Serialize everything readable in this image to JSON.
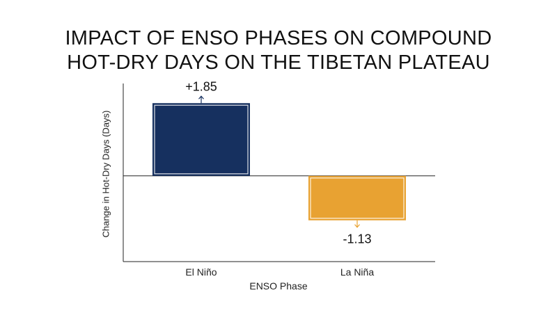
{
  "chart_data": {
    "type": "bar",
    "title_lines": [
      "IMPACT OF ENSO PHASES ON COMPOUND",
      "HOT-DRY DAYS ON THE TIBETAN PLATEAU"
    ],
    "xlabel": "ENSO Phase",
    "ylabel": "Change in Hot-Dry Days (Days)",
    "categories": [
      "El Niño",
      "La Niña"
    ],
    "values": [
      1.85,
      -1.13
    ],
    "data_labels": [
      "+1.85",
      "-1.13"
    ],
    "ylim": [
      -2.18,
      2.35
    ],
    "colors": [
      "#16305f",
      "#e8a232"
    ],
    "grid": false,
    "legend": "none"
  }
}
